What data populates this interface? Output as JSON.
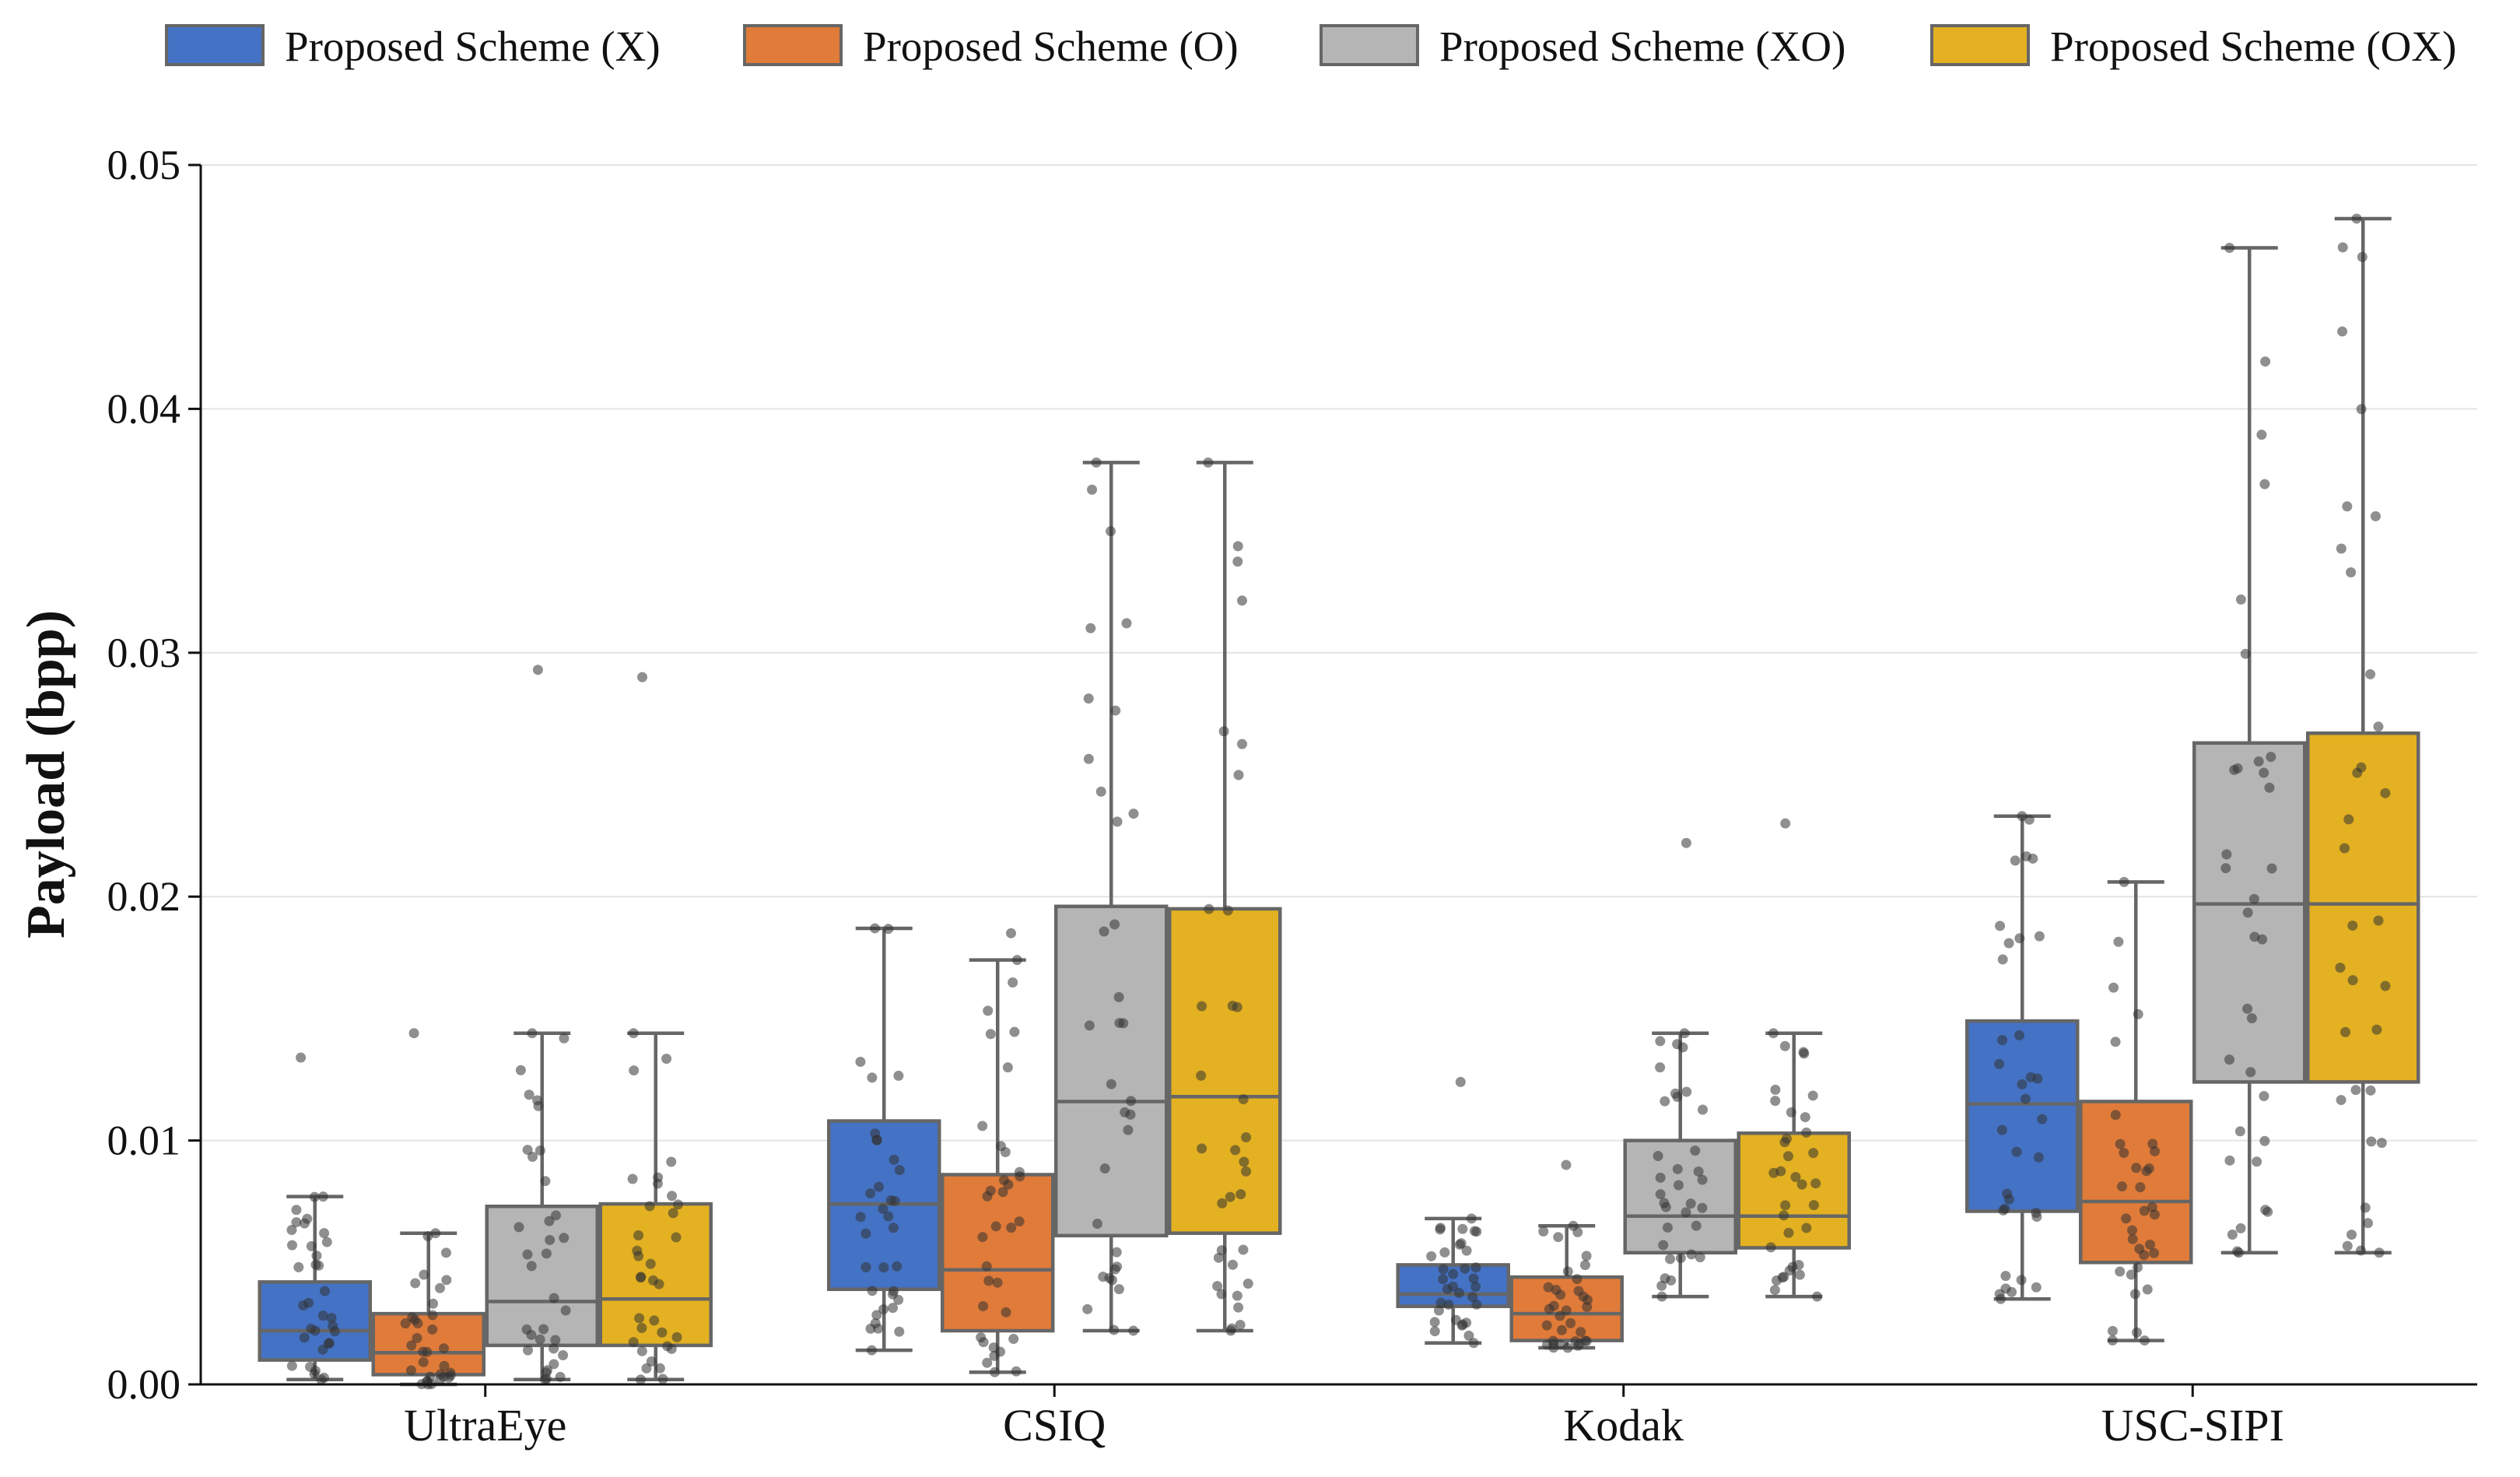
{
  "chart_data": {
    "type": "boxplot",
    "title": "",
    "xlabel": "",
    "ylabel": "Payload (bpp)",
    "ylim": [
      0,
      0.05
    ],
    "yticks": [
      "0.00",
      "0.01",
      "0.02",
      "0.03",
      "0.04",
      "0.05"
    ],
    "grid": true,
    "legend_position": "top",
    "categories": [
      "UltraEye",
      "CSIQ",
      "Kodak",
      "USC-SIPI"
    ],
    "series": [
      {
        "name": "Proposed Scheme (X)",
        "color": "#4472C4",
        "boxes": [
          {
            "whisker_low": 0.0002,
            "q1": 0.001,
            "median": 0.0022,
            "q3": 0.0042,
            "whisker_high": 0.0077,
            "outliers": [
              0.0134
            ]
          },
          {
            "whisker_low": 0.0014,
            "q1": 0.0039,
            "median": 0.0074,
            "q3": 0.0108,
            "whisker_high": 0.0187,
            "outliers": []
          },
          {
            "whisker_low": 0.0017,
            "q1": 0.0032,
            "median": 0.0037,
            "q3": 0.0049,
            "whisker_high": 0.0068,
            "outliers": [
              0.0124
            ]
          },
          {
            "whisker_low": 0.0035,
            "q1": 0.0071,
            "median": 0.0115,
            "q3": 0.0149,
            "whisker_high": 0.0233,
            "outliers": []
          }
        ]
      },
      {
        "name": "Proposed Scheme (O)",
        "color": "#E07B39",
        "boxes": [
          {
            "whisker_low": 0.0,
            "q1": 0.0004,
            "median": 0.0013,
            "q3": 0.0029,
            "whisker_high": 0.0062,
            "outliers": [
              0.0144
            ]
          },
          {
            "whisker_low": 0.0005,
            "q1": 0.0022,
            "median": 0.0047,
            "q3": 0.0086,
            "whisker_high": 0.0174,
            "outliers": [
              0.0185
            ]
          },
          {
            "whisker_low": 0.0015,
            "q1": 0.0018,
            "median": 0.0029,
            "q3": 0.0044,
            "whisker_high": 0.0065,
            "outliers": [
              0.009
            ]
          },
          {
            "whisker_low": 0.0018,
            "q1": 0.005,
            "median": 0.0075,
            "q3": 0.0116,
            "whisker_high": 0.0206,
            "outliers": []
          }
        ]
      },
      {
        "name": "Proposed Scheme (XO)",
        "color": "#B5B5B5",
        "boxes": [
          {
            "whisker_low": 0.0002,
            "q1": 0.0016,
            "median": 0.0034,
            "q3": 0.0073,
            "whisker_high": 0.0144,
            "outliers": [
              0.0293
            ]
          },
          {
            "whisker_low": 0.0022,
            "q1": 0.0061,
            "median": 0.0116,
            "q3": 0.0196,
            "whisker_high": 0.0378,
            "outliers": []
          },
          {
            "whisker_low": 0.0036,
            "q1": 0.0054,
            "median": 0.0069,
            "q3": 0.01,
            "whisker_high": 0.0144,
            "outliers": [
              0.0222
            ]
          },
          {
            "whisker_low": 0.0054,
            "q1": 0.0124,
            "median": 0.0197,
            "q3": 0.0263,
            "whisker_high": 0.0466,
            "outliers": []
          }
        ]
      },
      {
        "name": "Proposed Scheme (OX)",
        "color": "#E3B121",
        "boxes": [
          {
            "whisker_low": 0.0002,
            "q1": 0.0016,
            "median": 0.0035,
            "q3": 0.0074,
            "whisker_high": 0.0144,
            "outliers": [
              0.029
            ]
          },
          {
            "whisker_low": 0.0022,
            "q1": 0.0062,
            "median": 0.0118,
            "q3": 0.0195,
            "whisker_high": 0.0378,
            "outliers": []
          },
          {
            "whisker_low": 0.0036,
            "q1": 0.0056,
            "median": 0.0069,
            "q3": 0.0103,
            "whisker_high": 0.0144,
            "outliers": [
              0.023
            ]
          },
          {
            "whisker_low": 0.0054,
            "q1": 0.0124,
            "median": 0.0197,
            "q3": 0.0267,
            "whisker_high": 0.0478,
            "outliers": []
          }
        ]
      }
    ]
  }
}
